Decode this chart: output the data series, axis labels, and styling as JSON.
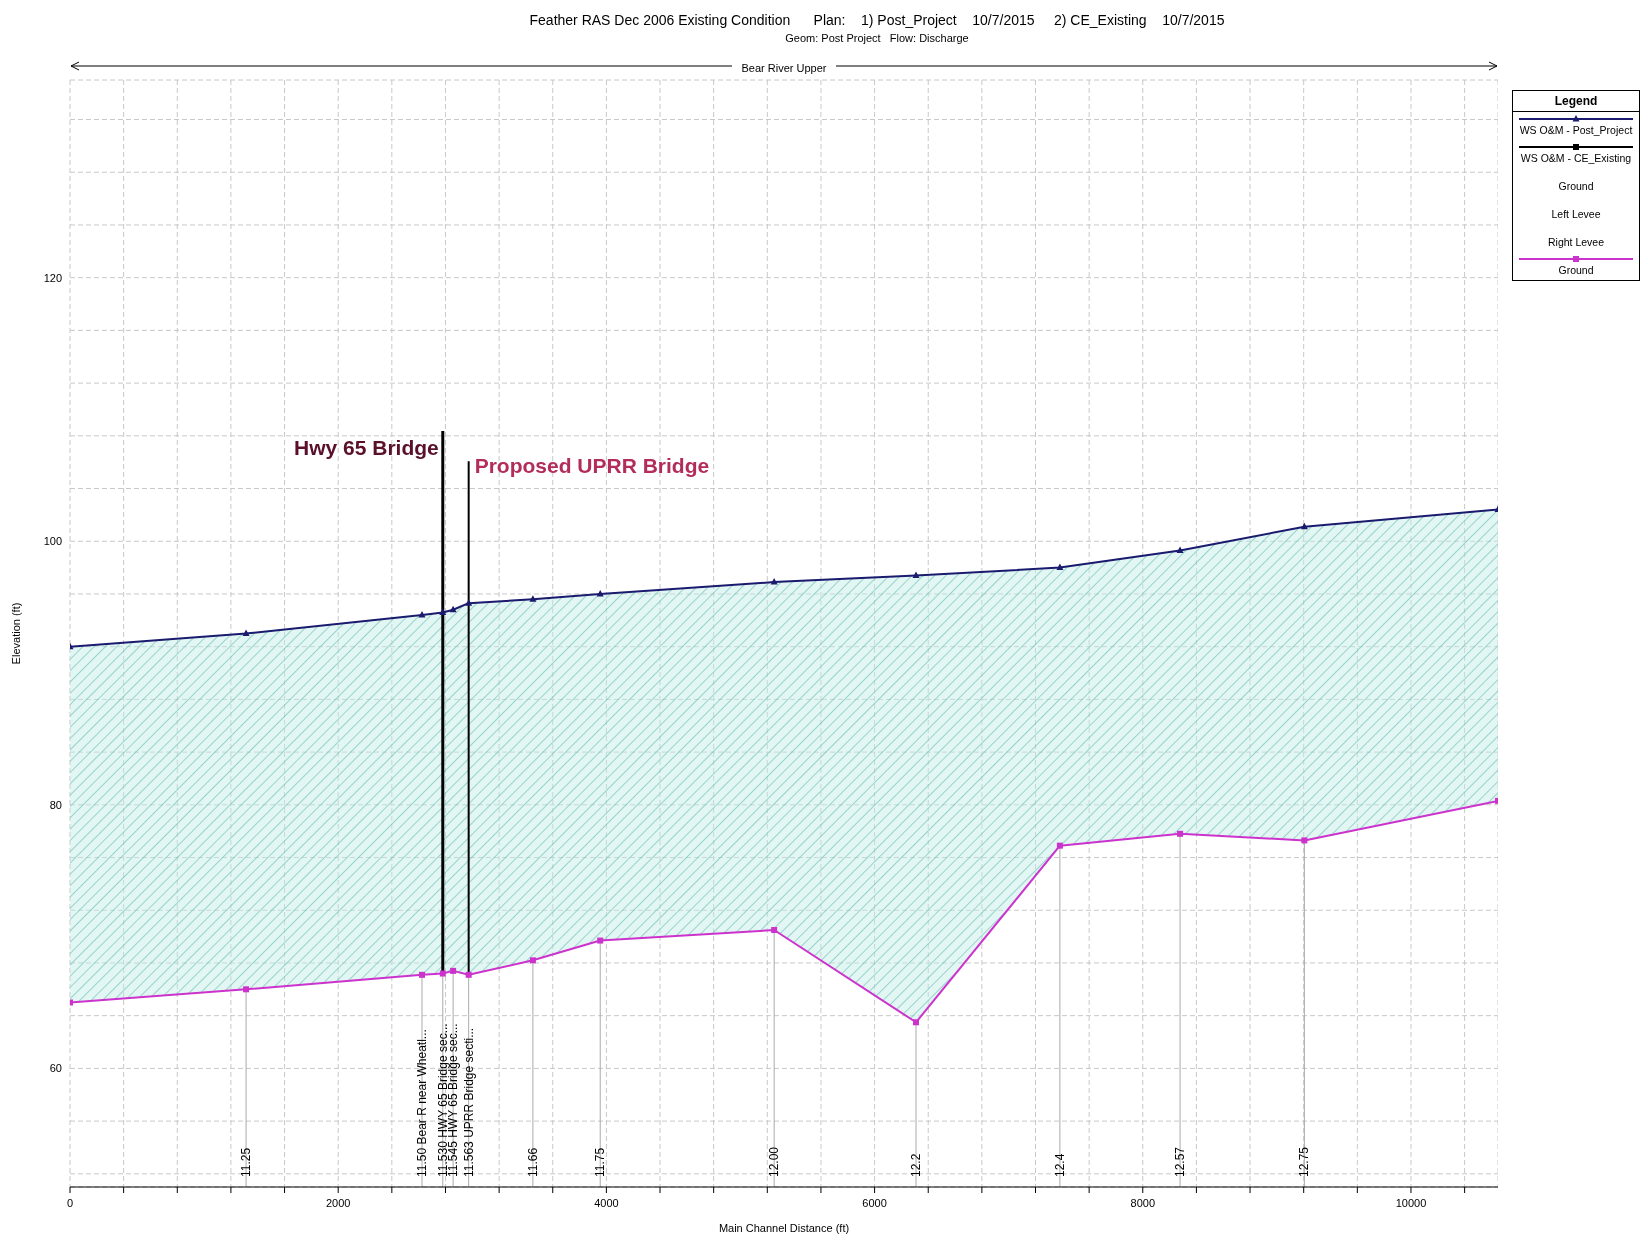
{
  "chart_data": {
    "type": "line",
    "title": "Feather RAS Dec 2006 Existing Condition      Plan:    1) Post_Project    10/7/2015     2) CE_Existing    10/7/2015",
    "subtitle": "Geom: Post Project   Flow: Discharge",
    "xlabel": "Main Channel Distance (ft)",
    "ylabel": "Elevation (ft)",
    "legend_title": "Legend",
    "legend": "top right",
    "grid": true,
    "x": [
      0,
      1313,
      2625,
      2780,
      2857,
      2973,
      3452,
      3954,
      5251,
      6309,
      7382,
      8278,
      9205,
      10649
    ],
    "series": [
      {
        "name": "WS  O&M - Post_Project",
        "color": "#1a1a6e",
        "marker": "triangle",
        "values": [
          92.0,
          93.0,
          94.4,
          94.6,
          94.8,
          95.3,
          95.6,
          96.0,
          96.9,
          97.4,
          98.0,
          99.3,
          101.1,
          102.4
        ],
        "lower": [
          65.0,
          66.0,
          67.1,
          67.2,
          67.4,
          67.1,
          68.2,
          69.7,
          70.5,
          63.5,
          76.9,
          77.8,
          77.3,
          80.3
        ],
        "upper": [
          92.0,
          93.0,
          94.4,
          94.6,
          94.8,
          95.3,
          95.6,
          96.0,
          96.9,
          97.4,
          98.0,
          99.3,
          101.1,
          102.4
        ]
      },
      {
        "name": "WS  O&M - CE_Existing",
        "color": "#000000",
        "marker": "square",
        "values": [
          null,
          null,
          null,
          null,
          null,
          null,
          null,
          null,
          null,
          null,
          null,
          null,
          null,
          null
        ]
      },
      {
        "name": "Ground",
        "values": [
          null,
          null,
          null,
          null,
          null,
          null,
          null,
          null,
          null,
          null,
          null,
          null,
          null,
          null
        ]
      },
      {
        "name": "Left Levee",
        "values": [
          null,
          null,
          null,
          null,
          null,
          null,
          null,
          null,
          null,
          null,
          null,
          null,
          null,
          null
        ]
      },
      {
        "name": "Right Levee",
        "values": [
          null,
          null,
          null,
          null,
          null,
          null,
          null,
          null,
          null,
          null,
          null,
          null,
          null,
          null
        ]
      },
      {
        "name": "Ground",
        "color": "#cc33cc",
        "marker": "square",
        "values": [
          65.0,
          66.0,
          67.1,
          67.2,
          67.4,
          67.1,
          68.2,
          69.7,
          70.5,
          63.5,
          76.9,
          77.8,
          77.3,
          80.3
        ]
      }
    ],
    "xlim": [
      0,
      10649
    ],
    "ylim": [
      51,
      135
    ],
    "xticks": [
      0,
      {
        "value": 400,
        "label": null
      },
      {
        "value": 800,
        "label": null
      },
      {
        "value": 1200,
        "label": null
      },
      {
        "value": 1600,
        "label": null
      },
      2000,
      {
        "value": 2400,
        "label": null
      },
      {
        "value": 2800,
        "label": null
      },
      {
        "value": 3200,
        "label": null
      },
      {
        "value": 3600,
        "label": null
      },
      4000,
      {
        "value": 4400,
        "label": null
      },
      {
        "value": 4800,
        "label": null
      },
      {
        "value": 5200,
        "label": null
      },
      {
        "value": 5600,
        "label": null
      },
      6000,
      {
        "value": 6400,
        "label": null
      },
      {
        "value": 6800,
        "label": null
      },
      {
        "value": 7200,
        "label": null
      },
      {
        "value": 7600,
        "label": null
      },
      8000,
      {
        "value": 8400,
        "label": null
      },
      {
        "value": 8800,
        "label": null
      },
      {
        "value": 9200,
        "label": null
      },
      {
        "value": 9600,
        "label": null
      },
      10000,
      {
        "value": 10400,
        "label": null
      }
    ],
    "yticks": [
      {
        "value": 52,
        "label": null
      },
      {
        "value": 56,
        "label": null
      },
      60,
      {
        "value": 64,
        "label": null
      },
      {
        "value": 68,
        "label": null
      },
      {
        "value": 72,
        "label": null
      },
      {
        "value": 76,
        "label": null
      },
      80,
      {
        "value": 84,
        "label": null
      },
      {
        "value": 88,
        "label": null
      },
      {
        "value": 92,
        "label": null
      },
      {
        "value": 96,
        "label": null
      },
      100,
      {
        "value": 104,
        "label": null
      },
      {
        "value": 108,
        "label": null
      },
      {
        "value": 112,
        "label": null
      },
      {
        "value": 116,
        "label": null
      },
      120,
      {
        "value": 124,
        "label": null
      },
      {
        "value": 128,
        "label": null
      },
      {
        "value": 132,
        "label": null
      }
    ],
    "ref_lines": [
      {
        "axis": "x",
        "value": 2780,
        "label": "Hwy 65 Bridge"
      },
      {
        "axis": "x",
        "value": 2973,
        "label": "Proposed UPRR Bridge"
      }
    ],
    "annotations": [
      "Bear River Upper",
      {
        "text": "11.25",
        "x": 1313
      },
      {
        "text": "11.50 Bear R near Wheatl...",
        "x": 2625
      },
      {
        "text": "11.530 HWY 65 Bridge sec...",
        "x": 2780
      },
      {
        "text": "11.545 HWY 65 Bridge sec...",
        "x": 2857
      },
      {
        "text": "11.563 UPRR Bridge secti...",
        "x": 2973
      },
      {
        "text": "11.66",
        "x": 3452
      },
      {
        "text": "11.75",
        "x": 3954
      },
      {
        "text": "12.00",
        "x": 5251
      },
      {
        "text": "12.2",
        "x": 6309
      },
      {
        "text": "12.4",
        "x": 7382
      },
      {
        "text": "12.57",
        "x": 8278
      },
      {
        "text": "12.75",
        "x": 9205
      }
    ]
  }
}
